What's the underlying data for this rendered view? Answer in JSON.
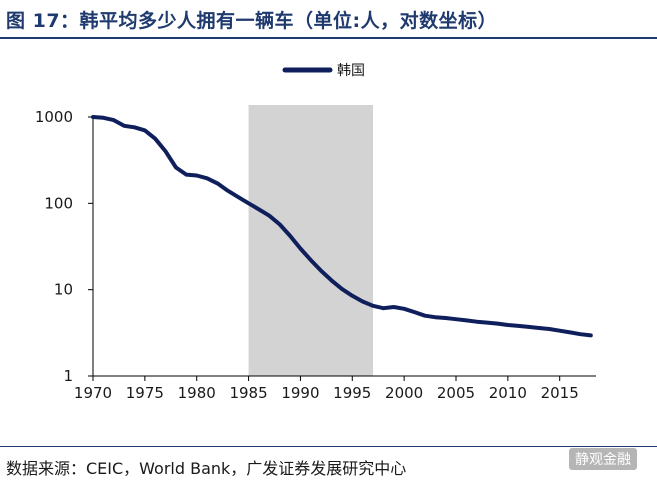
{
  "figure": {
    "title": "图 17：韩平均多少人拥有一辆车（单位:人，对数坐标）",
    "source": "数据来源：CEIC，World Bank，广发证券发展研究中心",
    "watermark": "静观金融"
  },
  "colors": {
    "series": "#0f1f5c",
    "shade": "#d3d3d3",
    "title": "#1f3a6e"
  },
  "chart_data": {
    "type": "line",
    "yscale": "log",
    "ylim": [
      1,
      1000
    ],
    "xlim": [
      1970,
      2018.5
    ],
    "xticks": [
      "1970",
      "1975",
      "1980",
      "1985",
      "1990",
      "1995",
      "2000",
      "2005",
      "2010",
      "2015"
    ],
    "yticks": [
      "1",
      "10",
      "100",
      "1000"
    ],
    "legend": {
      "position": "top-center",
      "entries": [
        "韩国"
      ]
    },
    "shaded_region": {
      "x0": 1985,
      "x1": 1997
    },
    "series": [
      {
        "name": "韩国",
        "x": [
          1970,
          1971,
          1972,
          1973,
          1974,
          1975,
          1976,
          1977,
          1978,
          1979,
          1980,
          1981,
          1982,
          1983,
          1984,
          1985,
          1986,
          1987,
          1988,
          1989,
          1990,
          1991,
          1992,
          1993,
          1994,
          1995,
          1996,
          1997,
          1998,
          1999,
          2000,
          2001,
          2002,
          2003,
          2004,
          2005,
          2006,
          2007,
          2008,
          2009,
          2010,
          2011,
          2012,
          2013,
          2014,
          2015,
          2016,
          2017,
          2018
        ],
        "y": [
          1000,
          980,
          920,
          790,
          760,
          700,
          560,
          400,
          260,
          215,
          210,
          195,
          170,
          140,
          118,
          100,
          85,
          72,
          57,
          42,
          30,
          22,
          16.5,
          12.8,
          10.2,
          8.5,
          7.3,
          6.5,
          6.1,
          6.3,
          6.0,
          5.5,
          5.0,
          4.8,
          4.7,
          4.55,
          4.4,
          4.25,
          4.15,
          4.05,
          3.9,
          3.8,
          3.7,
          3.6,
          3.5,
          3.35,
          3.2,
          3.05,
          2.95
        ]
      }
    ]
  }
}
